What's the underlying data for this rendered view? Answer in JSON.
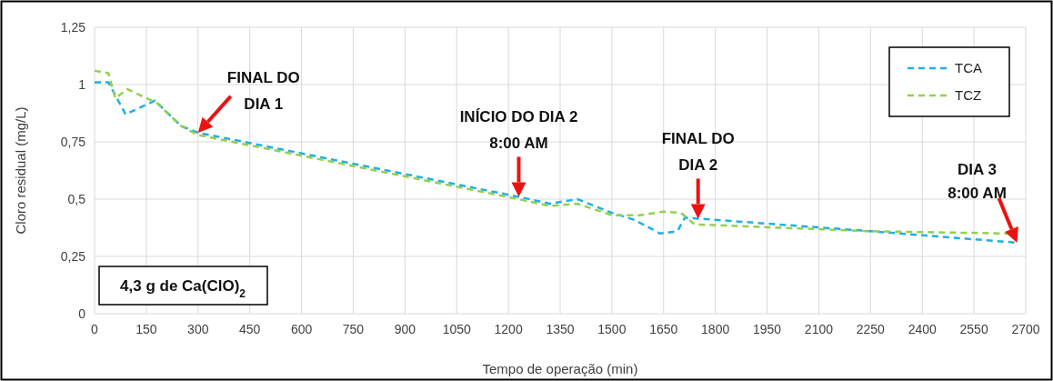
{
  "chart_data": {
    "type": "line",
    "xlabel": "Tempo de operação (min)",
    "ylabel": "Cloro residual (mg/L)",
    "xlim": [
      0,
      2700
    ],
    "xticks": [
      0,
      150,
      300,
      450,
      600,
      750,
      900,
      1050,
      1200,
      1350,
      1500,
      1650,
      1800,
      1950,
      2100,
      2250,
      2400,
      2550,
      2700
    ],
    "ylim": [
      0,
      1.25
    ],
    "yticks": [
      {
        "value": 0,
        "label": "0"
      },
      {
        "value": 0.25,
        "label": "0,25"
      },
      {
        "value": 0.5,
        "label": "0,5"
      },
      {
        "value": 0.75,
        "label": "0,75"
      },
      {
        "value": 1,
        "label": "1"
      },
      {
        "value": 1.25,
        "label": "1,25"
      }
    ],
    "grid": true,
    "legend": "top right",
    "line_style": "dashed",
    "series": [
      {
        "name": "TCA",
        "color": "#1fb0e6",
        "x": [
          0,
          40,
          90,
          175,
          250,
          300,
          1230,
          1320,
          1400,
          1500,
          1565,
          1640,
          1690,
          1712,
          1750,
          2250,
          2675
        ],
        "values": [
          1.01,
          1.01,
          0.87,
          0.93,
          0.82,
          0.79,
          0.51,
          0.48,
          0.5,
          0.44,
          0.41,
          0.35,
          0.36,
          0.42,
          0.415,
          0.36,
          0.31
        ]
      },
      {
        "name": "TCZ",
        "color": "#92d050",
        "x": [
          0,
          40,
          60,
          95,
          180,
          250,
          300,
          1230,
          1320,
          1400,
          1500,
          1580,
          1650,
          1700,
          1740,
          2250,
          2650
        ],
        "values": [
          1.06,
          1.05,
          0.94,
          0.98,
          0.92,
          0.82,
          0.78,
          0.5,
          0.47,
          0.48,
          0.43,
          0.43,
          0.445,
          0.44,
          0.39,
          0.36,
          0.35
        ]
      }
    ],
    "annotations": [
      {
        "text": "FINAL DO\nDIA 1",
        "x": 300,
        "y": 0.79
      },
      {
        "text": "INÍCIO DO DIA 2\n8:00 AM",
        "x": 1230,
        "y": 0.51
      },
      {
        "text": "FINAL DO\nDIA 2",
        "x": 1750,
        "y": 0.415
      },
      {
        "text": "DIA 3\n8:00 AM",
        "x": 2675,
        "y": 0.31
      },
      "4,3 g de Ca(ClO)$_{2}$"
    ]
  }
}
